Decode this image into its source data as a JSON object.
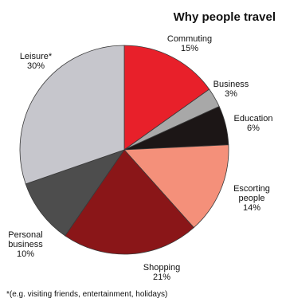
{
  "chart_data": {
    "type": "pie",
    "title": "Why people travel",
    "slices": [
      {
        "label_lines": [
          "Commuting",
          "15%"
        ],
        "value": 15,
        "color": "#e8202a"
      },
      {
        "label_lines": [
          "Business",
          "3%"
        ],
        "value": 3,
        "color": "#a8a8a8"
      },
      {
        "label_lines": [
          "Education",
          "6%"
        ],
        "value": 6,
        "color": "#1c1616"
      },
      {
        "label_lines": [
          "Escorting",
          "people",
          "14%"
        ],
        "value": 14,
        "color": "#f4907a"
      },
      {
        "label_lines": [
          "Shopping",
          "21%"
        ],
        "value": 21,
        "color": "#8a1618"
      },
      {
        "label_lines": [
          "Personal",
          "business",
          "10%"
        ],
        "value": 10,
        "color": "#4d4d4d"
      },
      {
        "label_lines": [
          "Leisure*",
          "30%"
        ],
        "value": 30,
        "color": "#c6c6cc"
      }
    ],
    "start": "12 o'clock",
    "direction": "clockwise",
    "footnote": "*(e.g. visiting friends, entertainment, holidays)"
  }
}
